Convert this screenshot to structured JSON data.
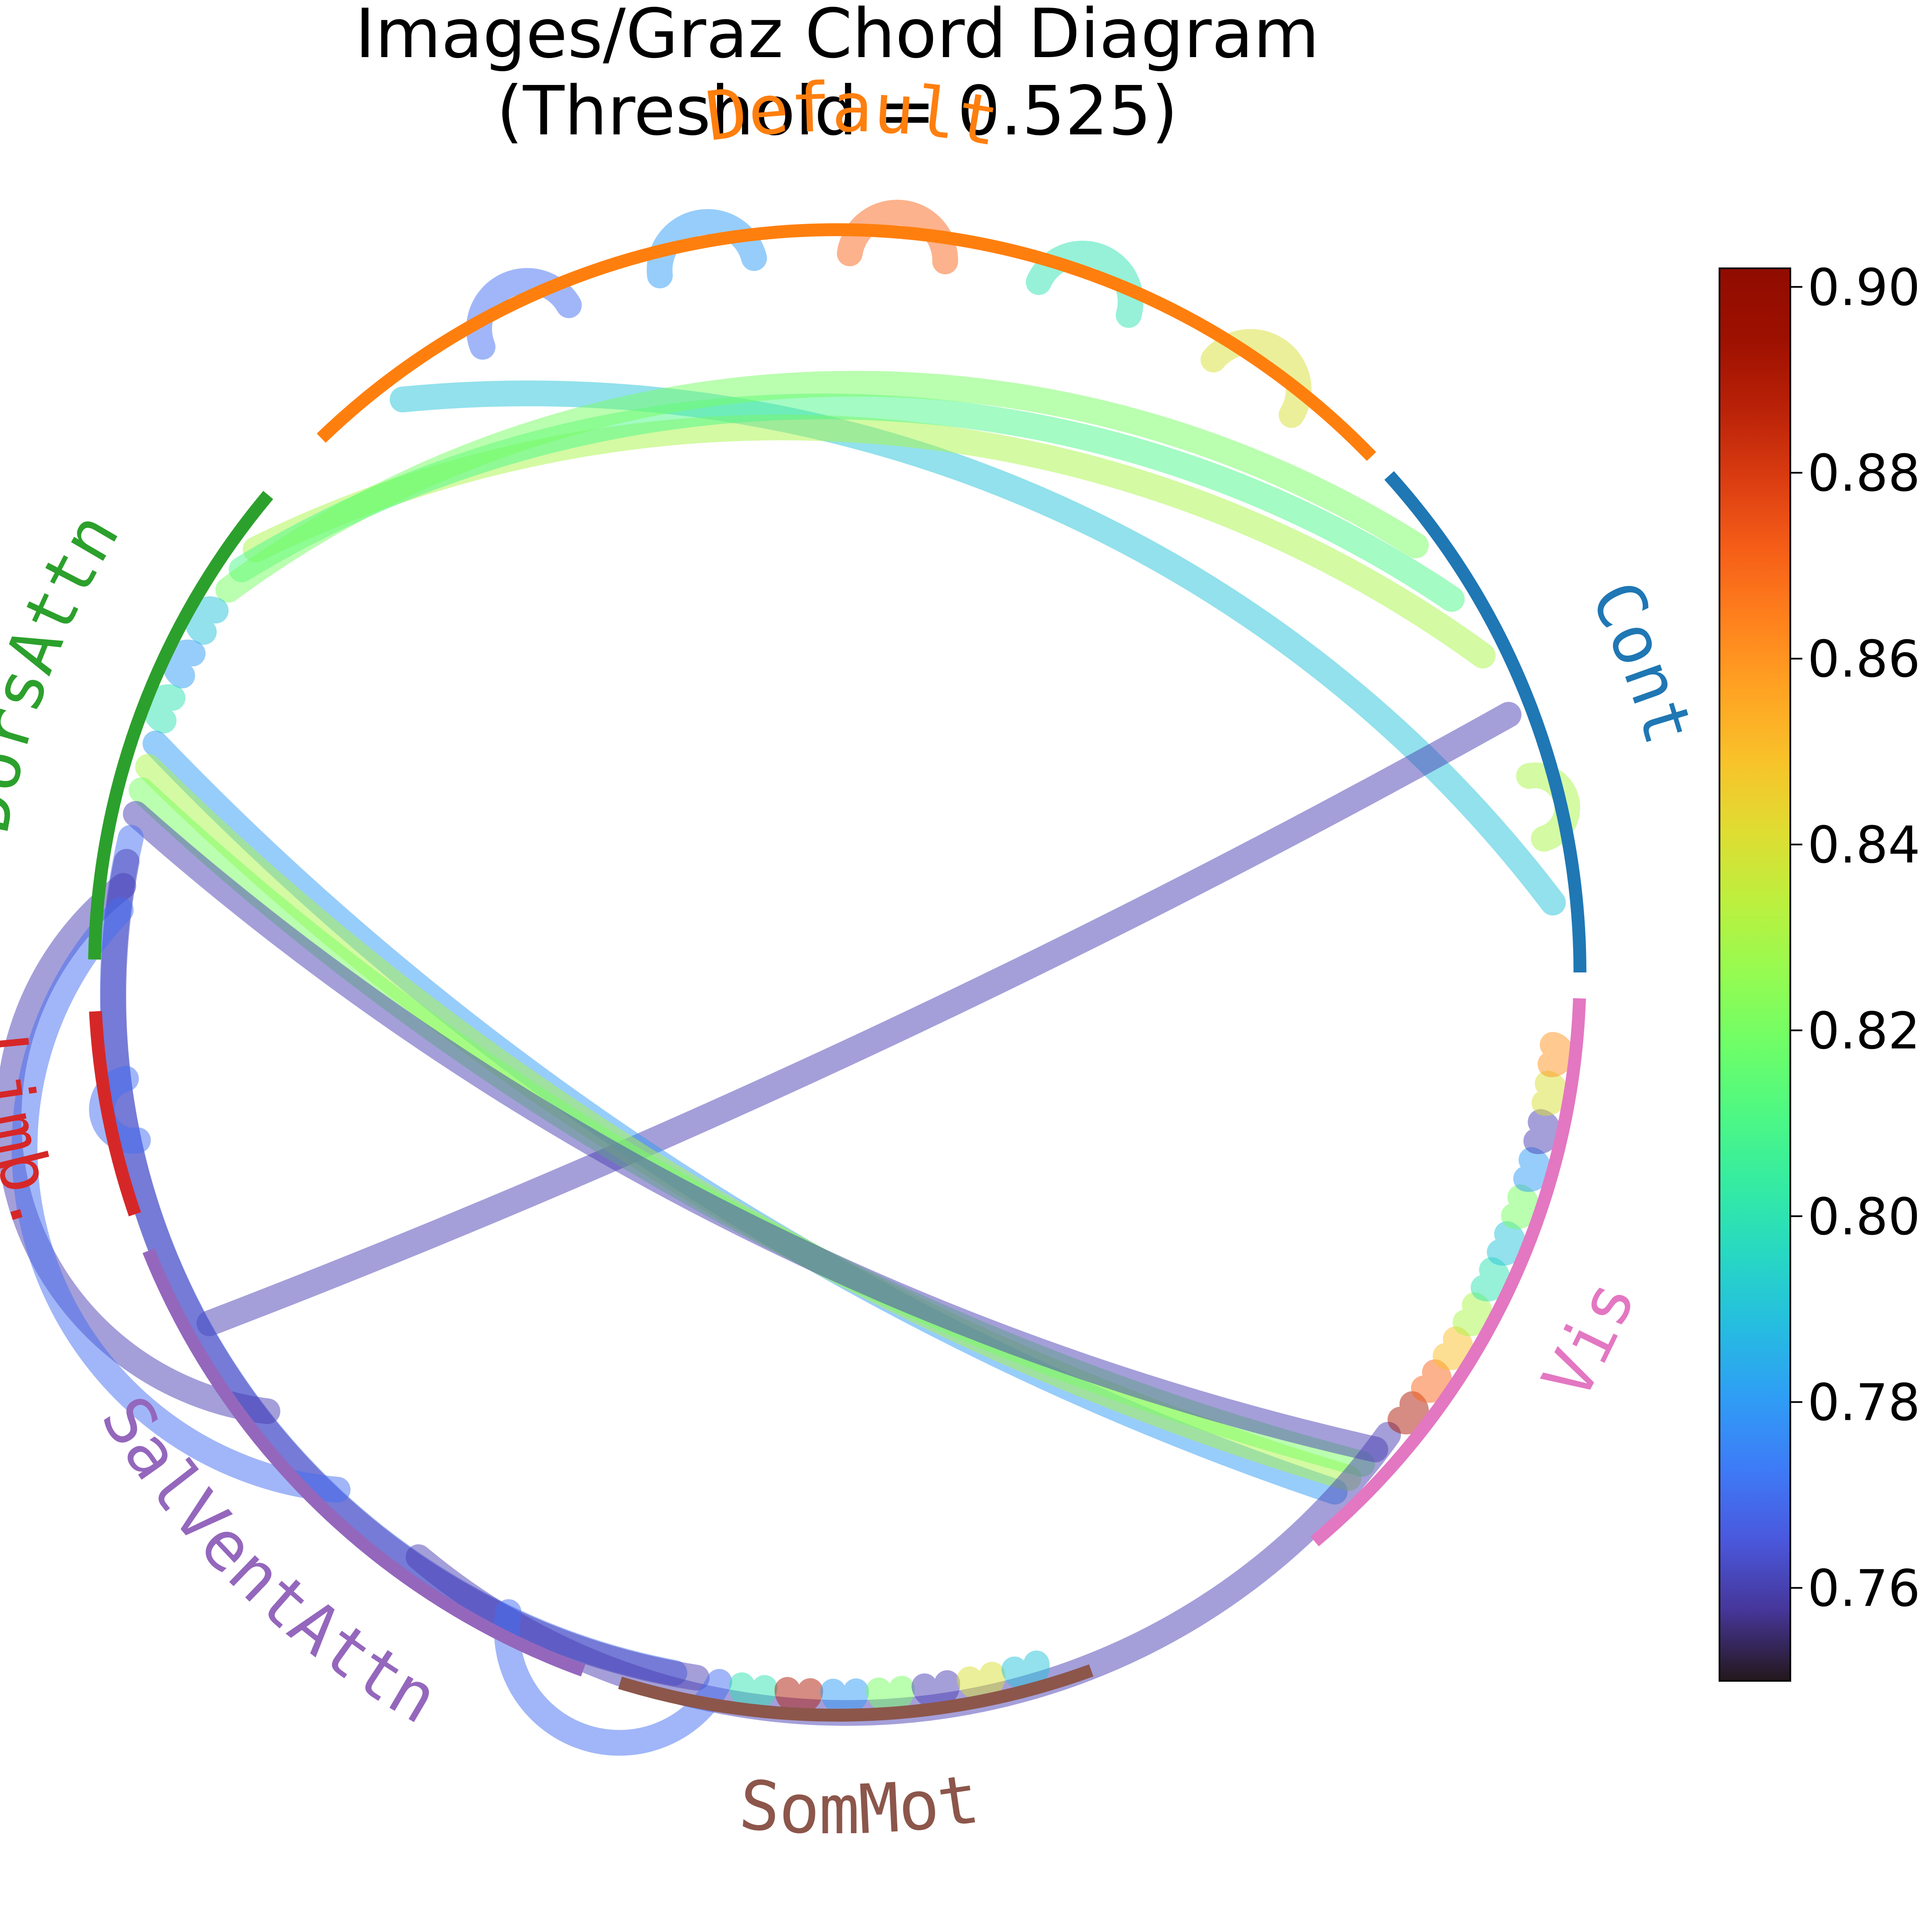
{
  "title": {
    "line1": "Images/Graz Chord Diagram",
    "line2": "(Threshold = 0.525)"
  },
  "groups": [
    {
      "name": "Default",
      "color": "#ff7f0e"
    },
    {
      "name": "Cont",
      "color": "#1f77b4"
    },
    {
      "name": "Vis",
      "color": "#e377c2"
    },
    {
      "name": "SomMot",
      "color": "#8c564b"
    },
    {
      "name": "SalVentAttn",
      "color": "#9467bd"
    },
    {
      "name": "Limb.",
      "color": "#d62728"
    },
    {
      "name": "DorsAttn",
      "color": "#2ca02c"
    }
  ],
  "colorbar": {
    "colormap": "turbo",
    "min": 0.75,
    "max": 0.902,
    "ticks": [
      "0.76",
      "0.78",
      "0.80",
      "0.82",
      "0.84",
      "0.86",
      "0.88",
      "0.90"
    ]
  },
  "chart_data": {
    "type": "chord",
    "threshold": 0.525,
    "connections": [
      {
        "from": "Default",
        "to": "Default",
        "value": 0.84
      },
      {
        "from": "Default",
        "to": "Default",
        "value": 0.8
      },
      {
        "from": "Default",
        "to": "Default",
        "value": 0.87
      },
      {
        "from": "Default",
        "to": "Default",
        "value": 0.78
      },
      {
        "from": "Default",
        "to": "Default",
        "value": 0.77
      },
      {
        "from": "Default",
        "to": "Cont",
        "value": 0.79
      },
      {
        "from": "Cont",
        "to": "Cont",
        "value": 0.83
      },
      {
        "from": "Cont",
        "to": "SalVentAttn",
        "value": 0.76
      },
      {
        "from": "Cont",
        "to": "DorsAttn",
        "value": 0.83
      },
      {
        "from": "Cont",
        "to": "DorsAttn",
        "value": 0.81
      },
      {
        "from": "Cont",
        "to": "DorsAttn",
        "value": 0.82
      },
      {
        "from": "DorsAttn",
        "to": "DorsAttn",
        "value": 0.79
      },
      {
        "from": "DorsAttn",
        "to": "DorsAttn",
        "value": 0.78
      },
      {
        "from": "DorsAttn",
        "to": "DorsAttn",
        "value": 0.8
      },
      {
        "from": "DorsAttn",
        "to": "Vis",
        "value": 0.78
      },
      {
        "from": "DorsAttn",
        "to": "Vis",
        "value": 0.83
      },
      {
        "from": "DorsAttn",
        "to": "Vis",
        "value": 0.82
      },
      {
        "from": "DorsAttn",
        "to": "Vis",
        "value": 0.76
      },
      {
        "from": "DorsAttn",
        "to": "SomMot",
        "value": 0.77
      },
      {
        "from": "DorsAttn",
        "to": "SomMot",
        "value": 0.76
      },
      {
        "from": "DorsAttn",
        "to": "SalVentAttn",
        "value": 0.76
      },
      {
        "from": "DorsAttn",
        "to": "SalVentAttn",
        "value": 0.77
      },
      {
        "from": "Limb.",
        "to": "Limb.",
        "value": 0.77
      },
      {
        "from": "SalVentAttn",
        "to": "Vis",
        "value": 0.76
      },
      {
        "from": "SalVentAttn",
        "to": "SomMot",
        "value": 0.77
      },
      {
        "from": "SomMot",
        "to": "SomMot",
        "value": 0.8
      },
      {
        "from": "SomMot",
        "to": "SomMot",
        "value": 0.89
      },
      {
        "from": "SomMot",
        "to": "SomMot",
        "value": 0.78
      },
      {
        "from": "SomMot",
        "to": "SomMot",
        "value": 0.82
      },
      {
        "from": "SomMot",
        "to": "SomMot",
        "value": 0.76
      },
      {
        "from": "SomMot",
        "to": "SomMot",
        "value": 0.84
      },
      {
        "from": "SomMot",
        "to": "SomMot",
        "value": 0.79
      },
      {
        "from": "Vis",
        "to": "Vis",
        "value": 0.89
      },
      {
        "from": "Vis",
        "to": "Vis",
        "value": 0.87
      },
      {
        "from": "Vis",
        "to": "Vis",
        "value": 0.85
      },
      {
        "from": "Vis",
        "to": "Vis",
        "value": 0.83
      },
      {
        "from": "Vis",
        "to": "Vis",
        "value": 0.8
      },
      {
        "from": "Vis",
        "to": "Vis",
        "value": 0.79
      },
      {
        "from": "Vis",
        "to": "Vis",
        "value": 0.82
      },
      {
        "from": "Vis",
        "to": "Vis",
        "value": 0.78
      },
      {
        "from": "Vis",
        "to": "Vis",
        "value": 0.76
      },
      {
        "from": "Vis",
        "to": "Vis",
        "value": 0.84
      },
      {
        "from": "Vis",
        "to": "Vis",
        "value": 0.86
      }
    ]
  }
}
